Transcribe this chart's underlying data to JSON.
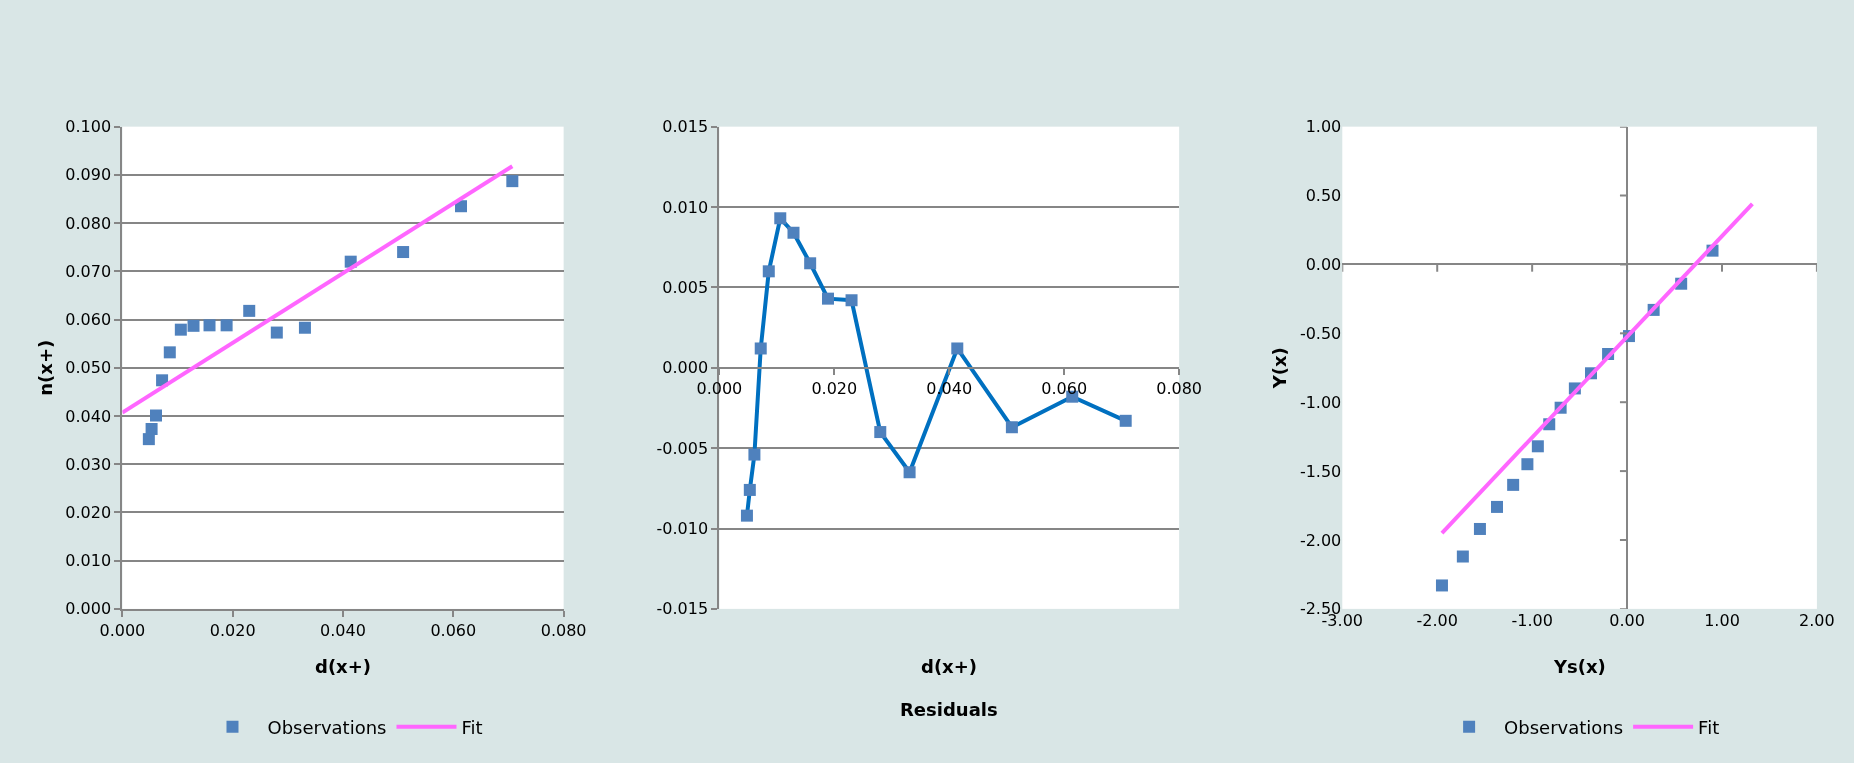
{
  "chart_data": [
    {
      "type": "scatter",
      "xlabel": "d(x+)",
      "ylabel": "n(x+)",
      "xlim": [
        0,
        0.08
      ],
      "xticks": [
        {
          "value": 0,
          "label": "0.000"
        },
        {
          "value": 0.02,
          "label": "0.020"
        },
        {
          "value": 0.04,
          "label": "0.040"
        },
        {
          "value": 0.06,
          "label": "0.060"
        },
        {
          "value": 0.08,
          "label": "0.080"
        }
      ],
      "ylim": [
        0,
        0.1
      ],
      "yticks": [
        {
          "value": 0,
          "label": "0.000"
        },
        {
          "value": 0.01,
          "label": "0.010"
        },
        {
          "value": 0.02,
          "label": "0.020"
        },
        {
          "value": 0.03,
          "label": "0.030"
        },
        {
          "value": 0.04,
          "label": "0.040"
        },
        {
          "value": 0.05,
          "label": "0.050"
        },
        {
          "value": 0.06,
          "label": "0.060"
        },
        {
          "value": 0.07,
          "label": "0.070"
        },
        {
          "value": 0.08,
          "label": "0.080"
        },
        {
          "value": 0.09,
          "label": "0.090"
        },
        {
          "value": 0.1,
          "label": "0.100"
        }
      ],
      "grid": "y",
      "legend": "bottom",
      "series": [
        {
          "name": "Observations",
          "type": "scatter",
          "marker": "square",
          "color": "#4f81bd",
          "x": [
            0.0048,
            0.0053,
            0.0061,
            0.0072,
            0.0086,
            0.0106,
            0.0129,
            0.0158,
            0.0189,
            0.023,
            0.028,
            0.0331,
            0.0414,
            0.0509,
            0.0614,
            0.0707
          ],
          "values": [
            0.0352,
            0.0373,
            0.0401,
            0.0474,
            0.0532,
            0.0579,
            0.0587,
            0.0588,
            0.0588,
            0.0618,
            0.0573,
            0.0583,
            0.072,
            0.074,
            0.0835,
            0.0887
          ]
        },
        {
          "name": "Fit",
          "type": "line",
          "marker": "none",
          "color": "#ff66ff",
          "x": [
            0,
            0.0707
          ],
          "values": [
            0.0407,
            0.0918
          ]
        }
      ]
    },
    {
      "type": "line",
      "title": "Residuals",
      "xlabel": "d(x+)",
      "xlim": [
        0,
        0.08
      ],
      "xticks": [
        {
          "value": 0,
          "label": "0.000"
        },
        {
          "value": 0.02,
          "label": "0.020"
        },
        {
          "value": 0.04,
          "label": "0.040"
        },
        {
          "value": 0.06,
          "label": "0.060"
        },
        {
          "value": 0.08,
          "label": "0.080"
        }
      ],
      "ylim": [
        -0.015,
        0.015
      ],
      "yticks": [
        {
          "value": -0.015,
          "label": "-0.015"
        },
        {
          "value": -0.01,
          "label": "-0.010"
        },
        {
          "value": -0.005,
          "label": "-0.005"
        },
        {
          "value": 0,
          "label": "0.000"
        },
        {
          "value": 0.005,
          "label": "0.005"
        },
        {
          "value": 0.01,
          "label": "0.010"
        },
        {
          "value": 0.015,
          "label": "0.015"
        }
      ],
      "grid": "y",
      "marker": "square",
      "series": [
        {
          "color": "#0070c0",
          "x": [
            0.0048,
            0.0053,
            0.0061,
            0.0072,
            0.0086,
            0.0106,
            0.0129,
            0.0158,
            0.0189,
            0.023,
            0.028,
            0.0331,
            0.0414,
            0.0509,
            0.0614,
            0.0707
          ],
          "values": [
            -0.0092,
            -0.0076,
            -0.0054,
            0.0012,
            0.006,
            0.0093,
            0.0084,
            0.0065,
            0.0043,
            0.0042,
            -0.004,
            -0.0065,
            0.0012,
            -0.0037,
            -0.0018,
            -0.0033
          ]
        }
      ]
    },
    {
      "type": "scatter",
      "xlabel": "Ys(x)",
      "ylabel": "Y(x)",
      "xlim": [
        -3,
        2
      ],
      "xticks": [
        {
          "value": -3,
          "label": "-3.00"
        },
        {
          "value": -2,
          "label": "-2.00"
        },
        {
          "value": -1,
          "label": "-1.00"
        },
        {
          "value": 0,
          "label": "0.00"
        },
        {
          "value": 1,
          "label": "1.00"
        },
        {
          "value": 2,
          "label": "2.00"
        }
      ],
      "ylim": [
        -2.5,
        1
      ],
      "yticks": [
        {
          "value": -2.5,
          "label": "-2.50"
        },
        {
          "value": -2,
          "label": "-2.00"
        },
        {
          "value": -1.5,
          "label": "-1.50"
        },
        {
          "value": -1,
          "label": "-1.00"
        },
        {
          "value": -0.5,
          "label": "-0.50"
        },
        {
          "value": 0,
          "label": "0.00"
        },
        {
          "value": 0.5,
          "label": "0.50"
        },
        {
          "value": 1,
          "label": "1.00"
        }
      ],
      "legend": "bottom",
      "series": [
        {
          "name": "Observations",
          "type": "scatter",
          "marker": "square",
          "color": "#4f81bd",
          "x": [
            -1.95,
            -1.73,
            -1.55,
            -1.37,
            -1.2,
            -1.05,
            -0.94,
            -0.82,
            -0.7,
            -0.55,
            -0.38,
            -0.2,
            0.02,
            0.28,
            0.57,
            0.9
          ],
          "values": [
            -2.33,
            -2.12,
            -1.92,
            -1.76,
            -1.6,
            -1.45,
            -1.32,
            -1.16,
            -1.04,
            -0.9,
            -0.79,
            -0.65,
            -0.52,
            -0.33,
            -0.14,
            0.1
          ]
        },
        {
          "name": "Fit",
          "type": "line",
          "marker": "none",
          "color": "#ff66ff",
          "x": [
            -1.95,
            1.32
          ],
          "values": [
            -1.95,
            0.44
          ]
        }
      ]
    }
  ]
}
